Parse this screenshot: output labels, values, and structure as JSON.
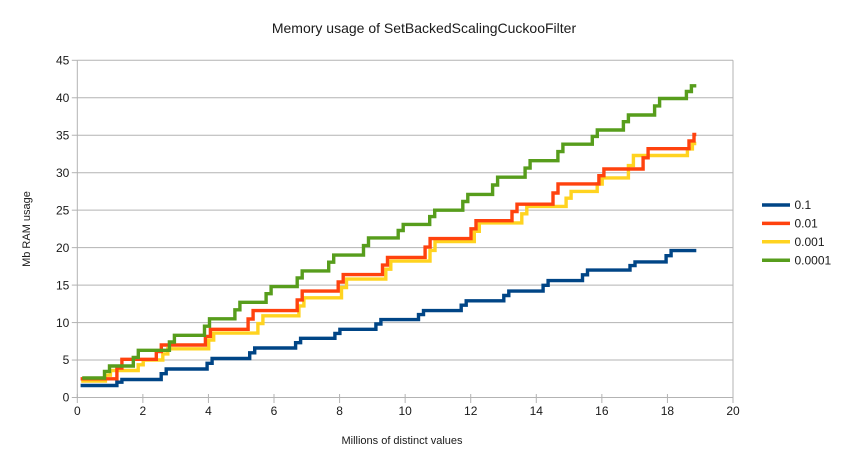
{
  "chart_data": {
    "type": "line",
    "step": true,
    "title": "Memory usage of SetBackedScalingCuckooFilter",
    "xlabel": "Millions of distinct values",
    "ylabel": "Mb RAM usage",
    "xlim": [
      0,
      20
    ],
    "ylim": [
      0,
      45
    ],
    "x_ticks": [
      0,
      2,
      4,
      6,
      8,
      10,
      12,
      14,
      16,
      18,
      20
    ],
    "y_ticks": [
      0,
      5,
      10,
      15,
      20,
      25,
      30,
      35,
      40,
      45
    ],
    "grid": "horizontal",
    "grid_color": "#b3b3b3",
    "axis_color": "#b3b3b3",
    "background_color": "#ffffff",
    "legend_position": "right",
    "x_data_start": 0.1,
    "x_data_end": 18.88,
    "legend_order": [
      "0.1",
      "0.01",
      "0.001",
      "0.0001"
    ],
    "series": [
      {
        "name": "0.1",
        "color": "#004586",
        "steps": [
          [
            0.1,
            1.6
          ],
          [
            1.3,
            2.4
          ],
          [
            2.65,
            3.8
          ],
          [
            4.05,
            5.2
          ],
          [
            5.35,
            6.6
          ],
          [
            6.75,
            7.9
          ],
          [
            7.95,
            9.1
          ],
          [
            9.2,
            10.4
          ],
          [
            10.5,
            11.6
          ],
          [
            11.8,
            12.9
          ],
          [
            13.1,
            14.2
          ],
          [
            14.3,
            15.6
          ],
          [
            15.5,
            17.0
          ],
          [
            16.95,
            18.1
          ],
          [
            18.05,
            19.6
          ]
        ]
      },
      {
        "name": "0.001",
        "color": "#ffd320",
        "steps": [
          [
            0.12,
            2.2
          ],
          [
            0.95,
            3.6
          ],
          [
            1.95,
            5.0
          ],
          [
            2.7,
            6.5
          ],
          [
            4.1,
            8.6
          ],
          [
            5.6,
            10.9
          ],
          [
            6.85,
            13.3
          ],
          [
            8.15,
            15.8
          ],
          [
            9.5,
            18.2
          ],
          [
            10.85,
            20.8
          ],
          [
            12.2,
            23.3
          ],
          [
            13.65,
            25.5
          ],
          [
            15.0,
            27.5
          ],
          [
            15.95,
            29.3
          ],
          [
            16.9,
            32.3
          ],
          [
            18.7,
            33.9
          ]
        ]
      },
      {
        "name": "0.01",
        "color": "#ff420e",
        "steps": [
          [
            0.1,
            2.5
          ],
          [
            1.3,
            5.1
          ],
          [
            2.5,
            7.0
          ],
          [
            4.0,
            9.1
          ],
          [
            5.3,
            11.6
          ],
          [
            6.8,
            14.2
          ],
          [
            8.05,
            16.4
          ],
          [
            9.4,
            18.7
          ],
          [
            10.7,
            21.2
          ],
          [
            12.1,
            23.6
          ],
          [
            13.35,
            25.8
          ],
          [
            14.6,
            28.5
          ],
          [
            16.0,
            30.5
          ],
          [
            17.35,
            33.2
          ],
          [
            18.75,
            35.1
          ]
        ]
      },
      {
        "name": "0.0001",
        "color": "#579d1c",
        "steps": [
          [
            0.15,
            2.6
          ],
          [
            0.92,
            4.2
          ],
          [
            1.8,
            6.3
          ],
          [
            2.9,
            8.3
          ],
          [
            3.97,
            10.5
          ],
          [
            4.9,
            12.7
          ],
          [
            5.85,
            14.8
          ],
          [
            6.8,
            16.9
          ],
          [
            7.76,
            19.0
          ],
          [
            8.82,
            21.3
          ],
          [
            9.88,
            23.1
          ],
          [
            10.84,
            25.0
          ],
          [
            11.85,
            27.1
          ],
          [
            12.76,
            29.4
          ],
          [
            13.75,
            31.6
          ],
          [
            14.75,
            33.8
          ],
          [
            15.8,
            35.7
          ],
          [
            16.75,
            37.7
          ],
          [
            17.7,
            39.9
          ],
          [
            18.67,
            41.6
          ]
        ]
      }
    ]
  }
}
